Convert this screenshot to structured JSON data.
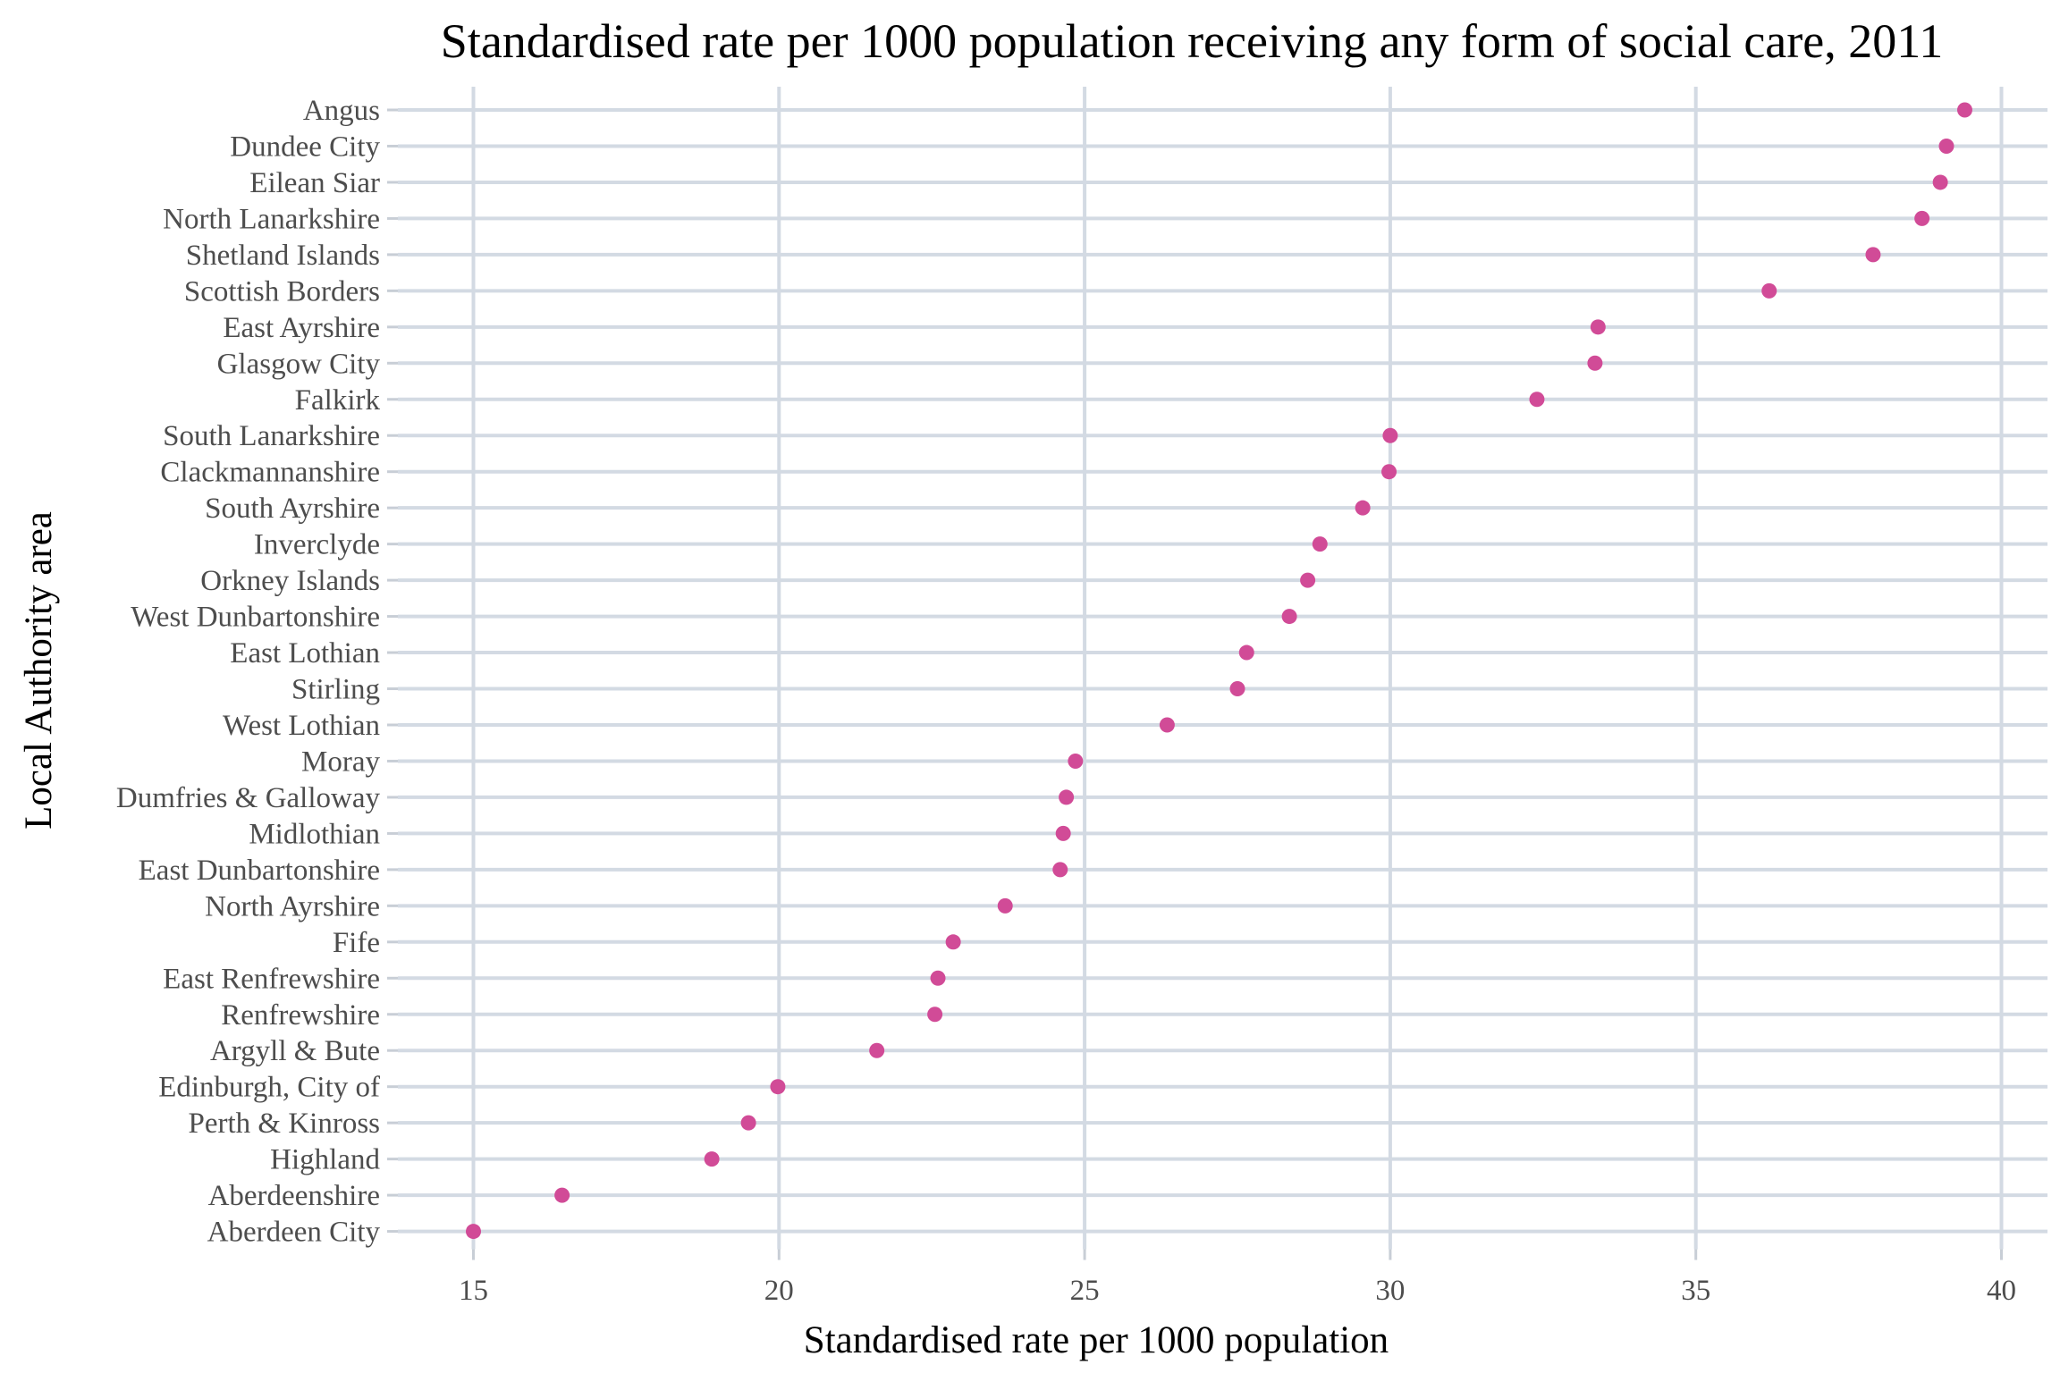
{
  "chart_data": {
    "type": "scatter",
    "title": "Standardised rate per 1000 population receiving any form of social care, 2011",
    "xlabel": "Standardised rate per 1000 population",
    "ylabel": "Local Authority area",
    "xlim": [
      13.7,
      40.6
    ],
    "xticks": [
      15,
      20,
      25,
      30,
      35,
      40
    ],
    "grid": true,
    "point_color": "#d14b97",
    "grid_color": "#d3dae3",
    "categories": [
      "Angus",
      "Dundee City",
      "Eilean Siar",
      "North Lanarkshire",
      "Shetland Islands",
      "Scottish Borders",
      "East Ayrshire",
      "Glasgow City",
      "Falkirk",
      "South Lanarkshire",
      "Clackmannanshire",
      "South Ayrshire",
      "Inverclyde",
      "Orkney Islands",
      "West Dunbartonshire",
      "East Lothian",
      "Stirling",
      "West Lothian",
      "Moray",
      "Dumfries & Galloway",
      "Midlothian",
      "East Dunbartonshire",
      "North Ayrshire",
      "Fife",
      "East Renfrewshire",
      "Renfrewshire",
      "Argyll & Bute",
      "Edinburgh, City of",
      "Perth & Kinross",
      "Highland",
      "Aberdeenshire",
      "Aberdeen City"
    ],
    "values": [
      39.4,
      39.1,
      39.0,
      38.7,
      37.9,
      36.2,
      33.4,
      33.35,
      32.4,
      30.0,
      29.98,
      29.55,
      28.85,
      28.65,
      28.35,
      27.65,
      27.5,
      26.35,
      24.85,
      24.7,
      24.65,
      24.6,
      23.7,
      22.85,
      22.6,
      22.55,
      21.6,
      19.98,
      19.5,
      18.9,
      16.45,
      15.0
    ]
  }
}
